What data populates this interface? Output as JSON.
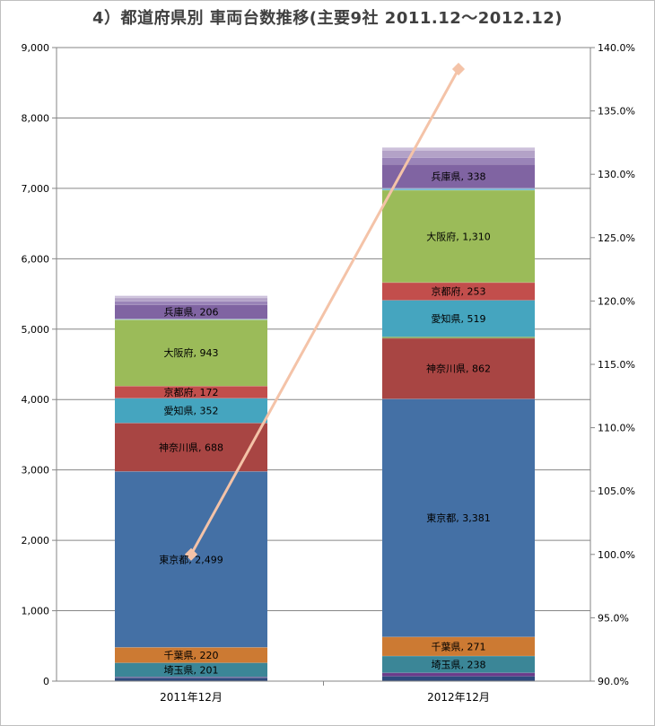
{
  "chart_data": {
    "type": "bar",
    "stacked": true,
    "title": "4）都道府県別 車両台数推移(主要9社 2011.12～2012.12)",
    "categories": [
      "2011年12月",
      "2012年12月"
    ],
    "y_left": {
      "min": 0,
      "max": 9000,
      "step": 1000,
      "ticks": [
        "0",
        "1,000",
        "2,000",
        "3,000",
        "4,000",
        "5,000",
        "6,000",
        "7,000",
        "8,000",
        "9,000"
      ]
    },
    "y_right": {
      "min": 90,
      "max": 140,
      "step": 5,
      "ticks": [
        "90.0%",
        "95.0%",
        "100.0%",
        "105.0%",
        "110.0%",
        "115.0%",
        "120.0%",
        "125.0%",
        "130.0%",
        "135.0%",
        "140.0%"
      ]
    },
    "grid": true,
    "series": [
      {
        "key": "s1",
        "values": [
          50,
          70
        ],
        "color": "#2E4A7D"
      },
      {
        "key": "s2",
        "values": [
          10,
          50
        ],
        "color": "#6B3A8A"
      },
      {
        "name": "埼玉県",
        "values": [
          201,
          238
        ],
        "color": "#3B8697",
        "labels": [
          "埼玉県, 201",
          "埼玉県, 238"
        ]
      },
      {
        "name": "千葉県",
        "values": [
          220,
          271
        ],
        "color": "#CC7A33",
        "labels": [
          "千葉県, 220",
          "千葉県, 271"
        ]
      },
      {
        "name": "東京都",
        "values": [
          2499,
          3381
        ],
        "color": "#4470A5",
        "labels": [
          "東京都, 2,499",
          "東京都, 3,381"
        ]
      },
      {
        "name": "神奈川県",
        "values": [
          688,
          862
        ],
        "color": "#A84543",
        "labels": [
          "神奈川県, 688",
          "神奈川県, 862"
        ]
      },
      {
        "key": "s7",
        "values": [
          0,
          20
        ],
        "color": "#7FA04B"
      },
      {
        "name": "愛知県",
        "values": [
          352,
          519
        ],
        "color": "#45A5BF",
        "labels": [
          "愛知県, 352",
          "愛知県, 519"
        ]
      },
      {
        "name": "京都府",
        "values": [
          172,
          253
        ],
        "color": "#C24E4C",
        "labels": [
          "京都府, 172",
          "京都府, 253"
        ]
      },
      {
        "name": "大阪府",
        "values": [
          943,
          1310
        ],
        "color": "#9BBB59",
        "labels": [
          "大阪府, 943",
          "大阪府, 1,310"
        ]
      },
      {
        "key": "s11",
        "values": [
          5,
          12
        ],
        "color": "#4BACC6"
      },
      {
        "key": "s12",
        "values": [
          5,
          18
        ],
        "color": "#8EB3D6"
      },
      {
        "name": "兵庫県",
        "values": [
          206,
          338
        ],
        "color": "#8064A2",
        "labels": [
          "兵庫県, 206",
          "兵庫県, 338"
        ]
      },
      {
        "key": "s14",
        "values": [
          50,
          100
        ],
        "color": "#9A84B8"
      },
      {
        "key": "s15",
        "values": [
          45,
          100
        ],
        "color": "#B3A2C7"
      },
      {
        "key": "s16",
        "values": [
          30,
          40
        ],
        "color": "#CCC0DA"
      }
    ],
    "line": {
      "axis": "right",
      "values": [
        100,
        138.3
      ],
      "color": "#F4C3A8"
    }
  }
}
